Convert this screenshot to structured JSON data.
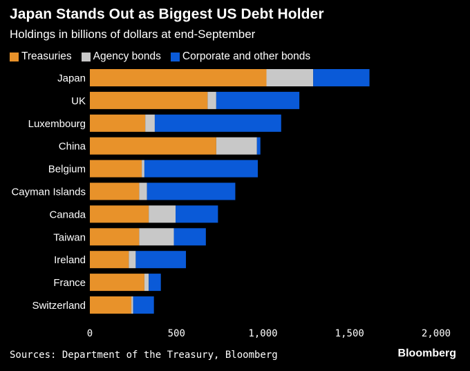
{
  "title": "Japan Stands Out as Biggest US Debt Holder",
  "subtitle": "Holdings in billions of dollars at end-September",
  "source": "Sources: Department of the Treasury, Bloomberg",
  "brand": "Bloomberg",
  "colors": {
    "treasuries": "#E8922A",
    "agency": "#C8C8C8",
    "corporate": "#0A5AD8",
    "background": "#000000"
  },
  "chart_data": {
    "type": "bar",
    "orientation": "horizontal",
    "stacked": true,
    "title": "Japan Stands Out as Biggest US Debt Holder",
    "subtitle": "Holdings in billions of dollars at end-September",
    "xlabel": "",
    "ylabel": "",
    "xlim": [
      0,
      2000
    ],
    "x_ticks": [
      0,
      500,
      1000,
      1500,
      2000
    ],
    "x_tick_labels": [
      "0",
      "500",
      "1,000",
      "1,500",
      "2,000"
    ],
    "grid": false,
    "legend_position": "top-left",
    "categories": [
      "Japan",
      "UK",
      "Luxembourg",
      "China",
      "Belgium",
      "Cayman Islands",
      "Canada",
      "Taiwan",
      "Ireland",
      "France",
      "Switzerland"
    ],
    "series": [
      {
        "name": "Treasuries",
        "color": "#E8922A",
        "values": [
          1020,
          680,
          320,
          730,
          300,
          285,
          340,
          285,
          225,
          315,
          240
        ]
      },
      {
        "name": "Agency bonds",
        "color": "#C8C8C8",
        "values": [
          270,
          50,
          55,
          235,
          15,
          45,
          155,
          200,
          40,
          25,
          10
        ]
      },
      {
        "name": "Corporate and other bonds",
        "color": "#0A5AD8",
        "values": [
          325,
          480,
          730,
          20,
          655,
          510,
          245,
          185,
          290,
          70,
          120
        ]
      }
    ]
  }
}
